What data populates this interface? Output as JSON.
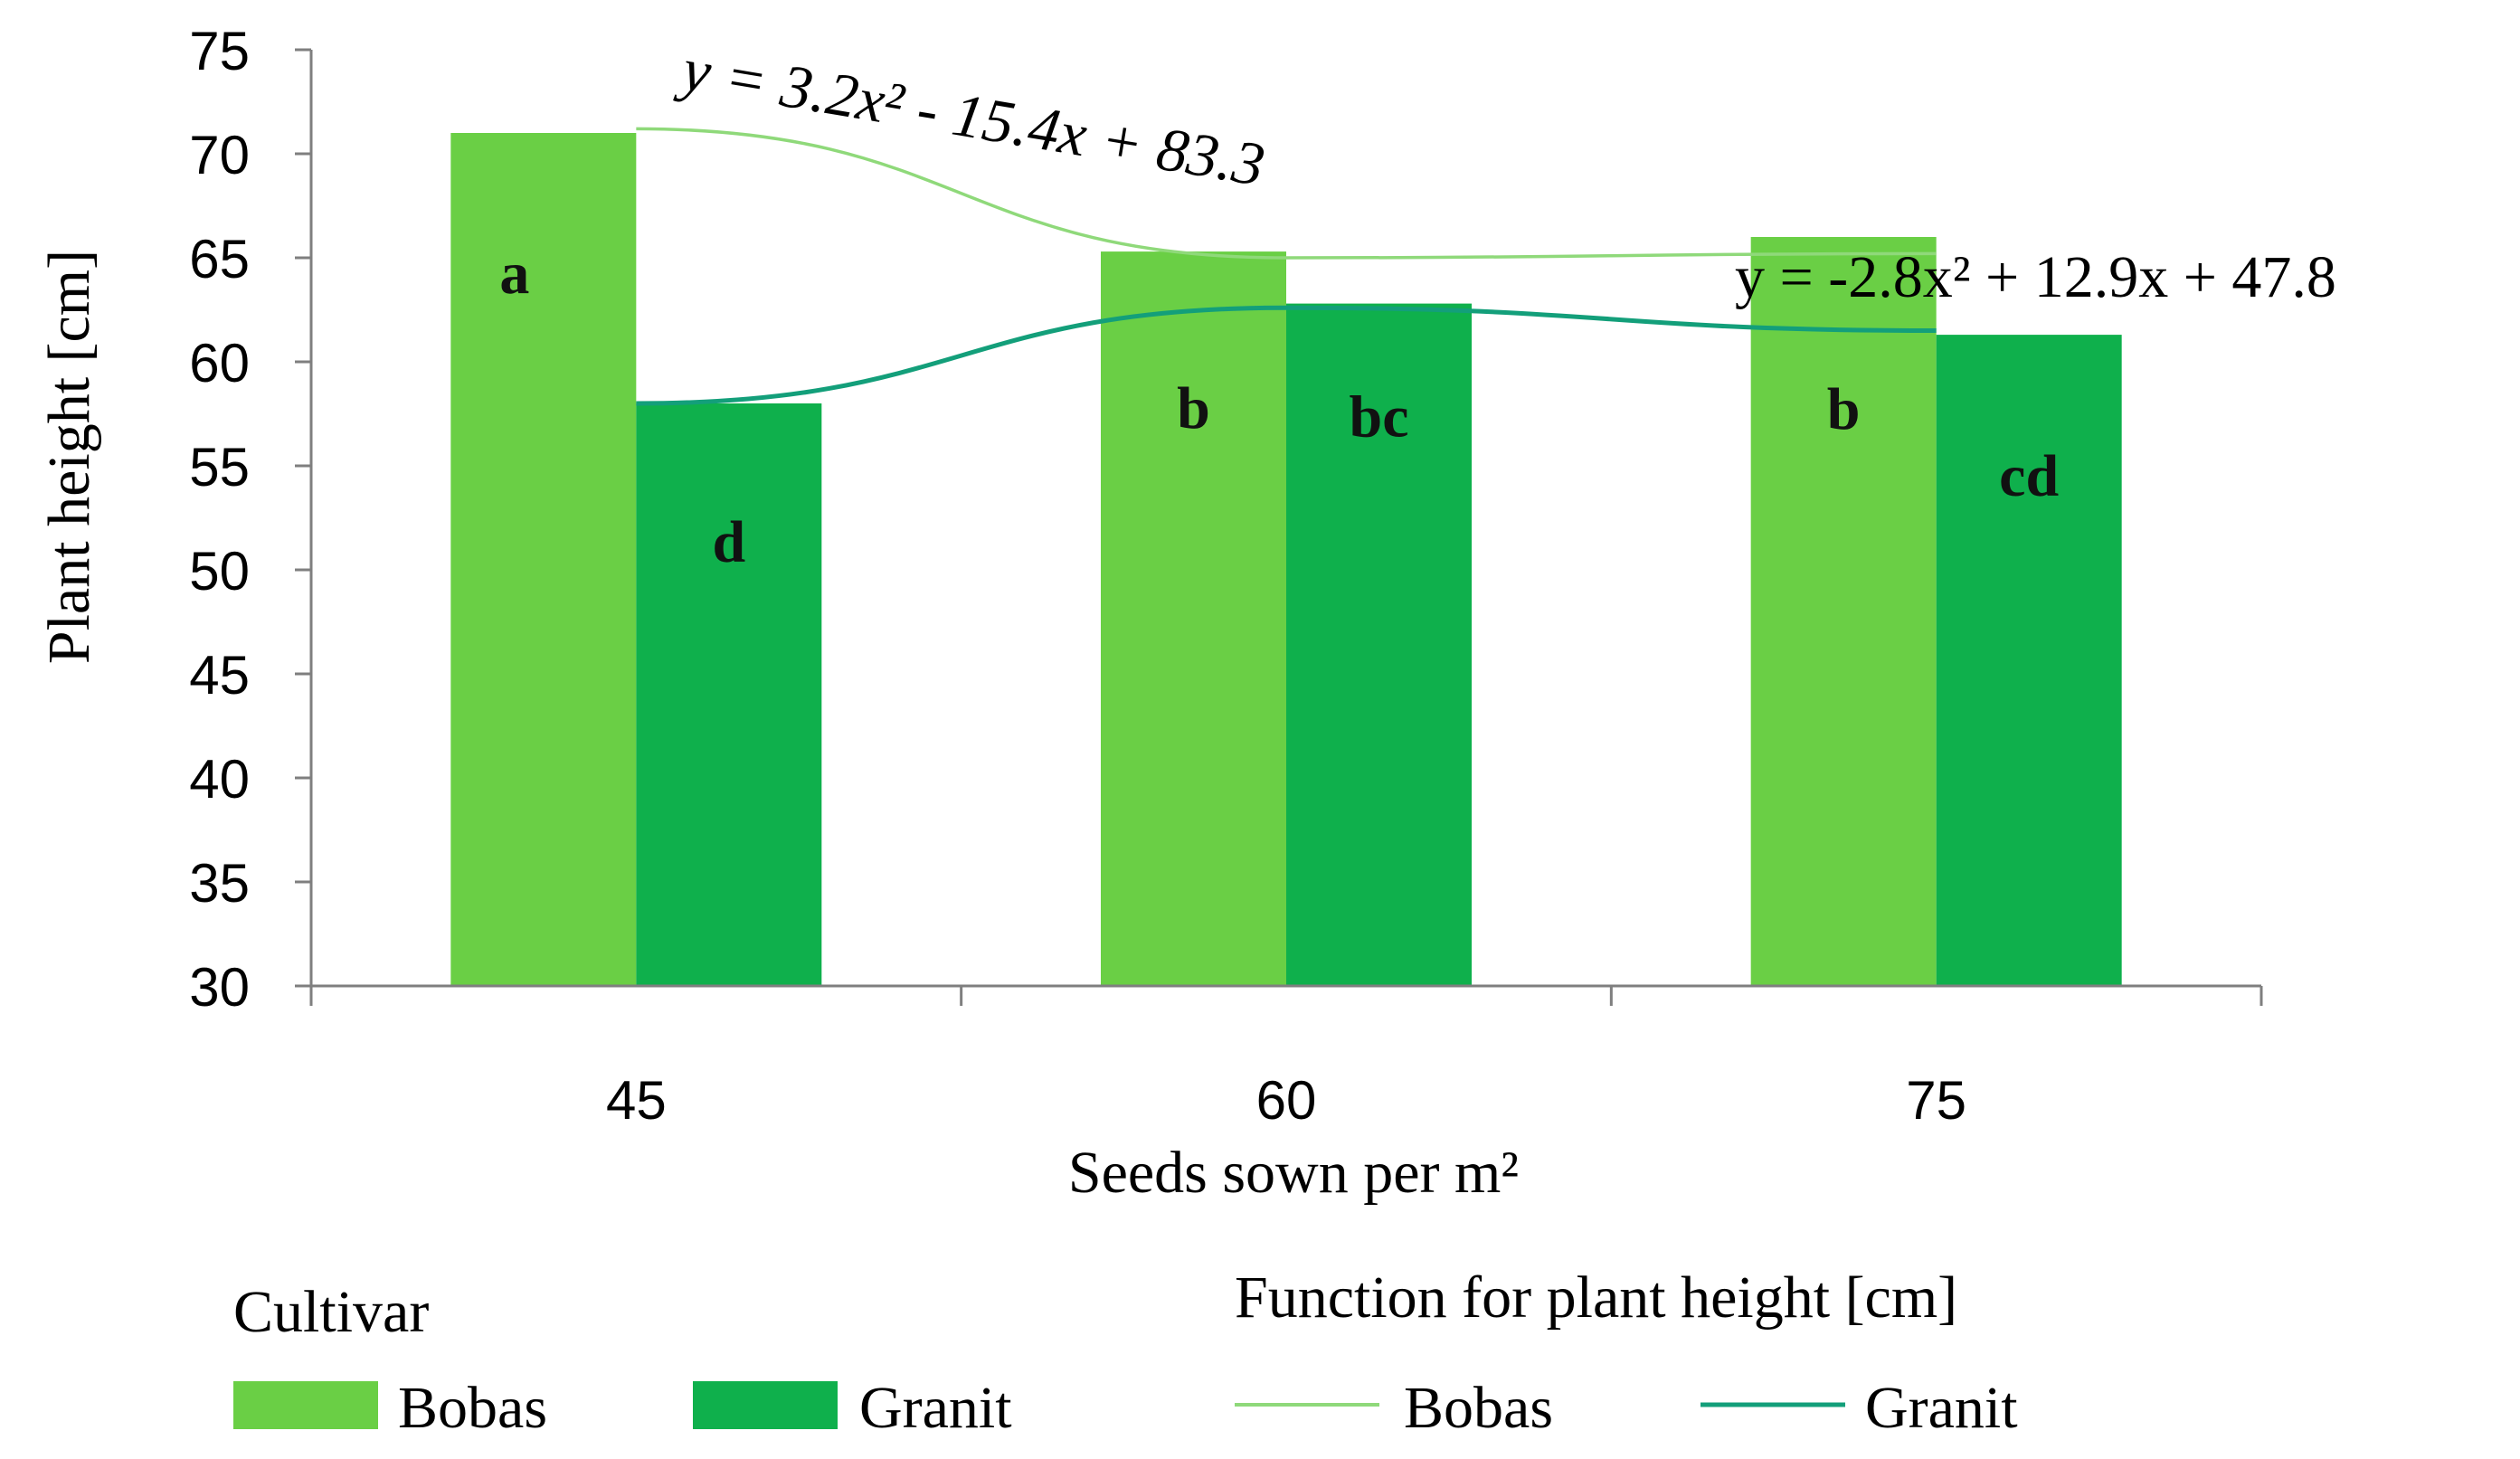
{
  "chart_data": {
    "type": "bar",
    "title": "",
    "xlabel": "Seeds sown per m²",
    "ylabel": "Plant height [cm]",
    "ylim": [
      30,
      75
    ],
    "yticks": [
      "30",
      "35",
      "40",
      "45",
      "50",
      "55",
      "60",
      "65",
      "70",
      "75"
    ],
    "categories": [
      "45",
      "60",
      "75"
    ],
    "series": [
      {
        "name": "Bobas",
        "color": "#6acf45",
        "values": [
          71.0,
          65.3,
          66.0
        ],
        "letters": [
          "a",
          "b",
          "b"
        ]
      },
      {
        "name": "Granit",
        "color": "#0fb04c",
        "values": [
          58.0,
          62.8,
          61.3
        ],
        "letters": [
          "d",
          "bc",
          "cd"
        ]
      }
    ],
    "trend_lines": [
      {
        "name": "Bobas",
        "color": "#8fd97a",
        "points": [
          71.2,
          65.0,
          65.2
        ],
        "equation": "y = 3.2x² - 15.4x + 83.3"
      },
      {
        "name": "Granit",
        "color": "#139f7a",
        "points": [
          58.0,
          62.6,
          61.5
        ],
        "equation": "y = -2.8x² + 12.9x + 47.8"
      }
    ],
    "legend": {
      "position": "bottom",
      "cultivar_title": "Cultivar",
      "function_title": "Function for plant height [cm]"
    }
  }
}
